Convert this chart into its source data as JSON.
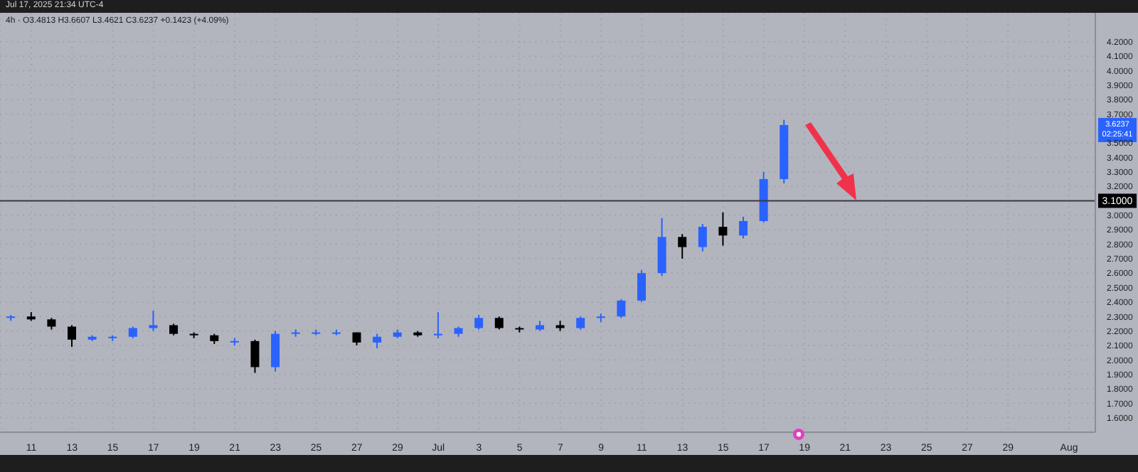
{
  "chart_data": {
    "type": "candlestick",
    "title": "Jul 17, 2025 21:34 UTC-4",
    "subtitle": "4h · O3.4813 H3.6607 L3.4621 C3.6237 +0.1423 (+4.09%)",
    "x": [
      "2025-06-10",
      "2025-06-11",
      "2025-06-12",
      "2025-06-13",
      "2025-06-14",
      "2025-06-15",
      "2025-06-16",
      "2025-06-17",
      "2025-06-18",
      "2025-06-19",
      "2025-06-20",
      "2025-06-21",
      "2025-06-22",
      "2025-06-23",
      "2025-06-24",
      "2025-06-25",
      "2025-06-26",
      "2025-06-27",
      "2025-06-28",
      "2025-06-29",
      "2025-06-30",
      "2025-07-01",
      "2025-07-02",
      "2025-07-03",
      "2025-07-04",
      "2025-07-05",
      "2025-07-06",
      "2025-07-07",
      "2025-07-08",
      "2025-07-09",
      "2025-07-10",
      "2025-07-11",
      "2025-07-12",
      "2025-07-13",
      "2025-07-14",
      "2025-07-15",
      "2025-07-16",
      "2025-07-17",
      "2025-07-18"
    ],
    "ohlc": [
      [
        2.29,
        2.31,
        2.27,
        2.3
      ],
      [
        2.3,
        2.33,
        2.27,
        2.28
      ],
      [
        2.28,
        2.29,
        2.21,
        2.23
      ],
      [
        2.23,
        2.24,
        2.09,
        2.14
      ],
      [
        2.14,
        2.17,
        2.13,
        2.16
      ],
      [
        2.16,
        2.17,
        2.13,
        2.16
      ],
      [
        2.16,
        2.23,
        2.15,
        2.22
      ],
      [
        2.22,
        2.34,
        2.2,
        2.24
      ],
      [
        2.24,
        2.25,
        2.17,
        2.18
      ],
      [
        2.18,
        2.19,
        2.15,
        2.17
      ],
      [
        2.17,
        2.18,
        2.11,
        2.13
      ],
      [
        2.13,
        2.15,
        2.1,
        2.13
      ],
      [
        2.13,
        2.14,
        1.91,
        1.95
      ],
      [
        1.95,
        2.2,
        1.92,
        2.18
      ],
      [
        2.18,
        2.21,
        2.16,
        2.19
      ],
      [
        2.19,
        2.21,
        2.17,
        2.19
      ],
      [
        2.19,
        2.21,
        2.17,
        2.19
      ],
      [
        2.19,
        2.19,
        2.1,
        2.12
      ],
      [
        2.12,
        2.18,
        2.08,
        2.16
      ],
      [
        2.16,
        2.21,
        2.15,
        2.19
      ],
      [
        2.19,
        2.2,
        2.16,
        2.17
      ],
      [
        2.17,
        2.33,
        2.15,
        2.18
      ],
      [
        2.18,
        2.23,
        2.16,
        2.22
      ],
      [
        2.22,
        2.31,
        2.21,
        2.29
      ],
      [
        2.29,
        2.3,
        2.21,
        2.22
      ],
      [
        2.22,
        2.23,
        2.19,
        2.21
      ],
      [
        2.21,
        2.27,
        2.2,
        2.24
      ],
      [
        2.24,
        2.27,
        2.2,
        2.22
      ],
      [
        2.22,
        2.3,
        2.21,
        2.29
      ],
      [
        2.29,
        2.32,
        2.26,
        2.3
      ],
      [
        2.3,
        2.42,
        2.29,
        2.41
      ],
      [
        2.41,
        2.62,
        2.4,
        2.6
      ],
      [
        2.6,
        2.98,
        2.58,
        2.85
      ],
      [
        2.85,
        2.87,
        2.7,
        2.78
      ],
      [
        2.78,
        2.94,
        2.75,
        2.92
      ],
      [
        2.92,
        3.02,
        2.79,
        2.86
      ],
      [
        2.86,
        2.99,
        2.84,
        2.96
      ],
      [
        2.96,
        3.3,
        2.95,
        3.25
      ],
      [
        3.25,
        3.66,
        3.22,
        3.6237
      ]
    ],
    "colors": [
      "#2962ff",
      "#000000",
      "#000000",
      "#000000",
      "#2962ff",
      "#2962ff",
      "#2962ff",
      "#2962ff",
      "#000000",
      "#000000",
      "#000000",
      "#2962ff",
      "#000000",
      "#2962ff",
      "#2962ff",
      "#2962ff",
      "#2962ff",
      "#000000",
      "#2962ff",
      "#2962ff",
      "#000000",
      "#2962ff",
      "#2962ff",
      "#2962ff",
      "#000000",
      "#000000",
      "#2962ff",
      "#000000",
      "#2962ff",
      "#2962ff",
      "#2962ff",
      "#2962ff",
      "#2962ff",
      "#000000",
      "#2962ff",
      "#000000",
      "#2962ff",
      "#2962ff",
      "#2962ff"
    ],
    "xlim": [
      "2025-06-09T11:00",
      "2025-08-02T07:00"
    ],
    "xticks": [
      {
        "value": "2025-06-11",
        "label": "11"
      },
      {
        "value": "2025-06-13",
        "label": "13"
      },
      {
        "value": "2025-06-15",
        "label": "15"
      },
      {
        "value": "2025-06-17",
        "label": "17"
      },
      {
        "value": "2025-06-19",
        "label": "19"
      },
      {
        "value": "2025-06-21",
        "label": "21"
      },
      {
        "value": "2025-06-23",
        "label": "23"
      },
      {
        "value": "2025-06-25",
        "label": "25"
      },
      {
        "value": "2025-06-27",
        "label": "27"
      },
      {
        "value": "2025-06-29",
        "label": "29"
      },
      {
        "value": "2025-07-01",
        "label": "Jul"
      },
      {
        "value": "2025-07-03",
        "label": "3"
      },
      {
        "value": "2025-07-05",
        "label": "5"
      },
      {
        "value": "2025-07-07",
        "label": "7"
      },
      {
        "value": "2025-07-09",
        "label": "9"
      },
      {
        "value": "2025-07-11",
        "label": "11"
      },
      {
        "value": "2025-07-13",
        "label": "13"
      },
      {
        "value": "2025-07-15",
        "label": "15"
      },
      {
        "value": "2025-07-17",
        "label": "17"
      },
      {
        "value": "2025-07-19",
        "label": "19"
      },
      {
        "value": "2025-07-21",
        "label": "21"
      },
      {
        "value": "2025-07-23",
        "label": "23"
      },
      {
        "value": "2025-07-25",
        "label": "25"
      },
      {
        "value": "2025-07-27",
        "label": "27"
      },
      {
        "value": "2025-07-29",
        "label": "29"
      },
      {
        "value": "2025-08-01",
        "label": "Aug"
      }
    ],
    "ylim": [
      1.5,
      4.4
    ],
    "yticks": [
      {
        "value": 1.6,
        "label": "1.6000"
      },
      {
        "value": 1.7,
        "label": "1.7000"
      },
      {
        "value": 1.8,
        "label": "1.8000"
      },
      {
        "value": 1.9,
        "label": "1.9000"
      },
      {
        "value": 2.0,
        "label": "2.0000"
      },
      {
        "value": 2.1,
        "label": "2.1000"
      },
      {
        "value": 2.2,
        "label": "2.2000"
      },
      {
        "value": 2.3,
        "label": "2.3000"
      },
      {
        "value": 2.4,
        "label": "2.4000"
      },
      {
        "value": 2.5,
        "label": "2.5000"
      },
      {
        "value": 2.6,
        "label": "2.6000"
      },
      {
        "value": 2.7,
        "label": "2.7000"
      },
      {
        "value": 2.8,
        "label": "2.8000"
      },
      {
        "value": 2.9,
        "label": "2.9000"
      },
      {
        "value": 3.0,
        "label": "3.0000"
      },
      {
        "value": 3.2,
        "label": "3.2000"
      },
      {
        "value": 3.3,
        "label": "3.3000"
      },
      {
        "value": 3.4,
        "label": "3.4000"
      },
      {
        "value": 3.5,
        "label": "3.5000"
      },
      {
        "value": 3.7,
        "label": "3.7000"
      },
      {
        "value": 3.8,
        "label": "3.8000"
      },
      {
        "value": 3.9,
        "label": "3.9000"
      },
      {
        "value": 4.0,
        "label": "4.0000"
      },
      {
        "value": 4.1,
        "label": "4.1000"
      },
      {
        "value": 4.2,
        "label": "4.2000"
      }
    ],
    "ref_lines": [
      {
        "axis": "y",
        "value": 3.1,
        "label": "3.1000",
        "color": "#3a3a3a"
      }
    ],
    "annotations": [
      "3.6237",
      "02:25:41"
    ],
    "grid": true
  }
}
